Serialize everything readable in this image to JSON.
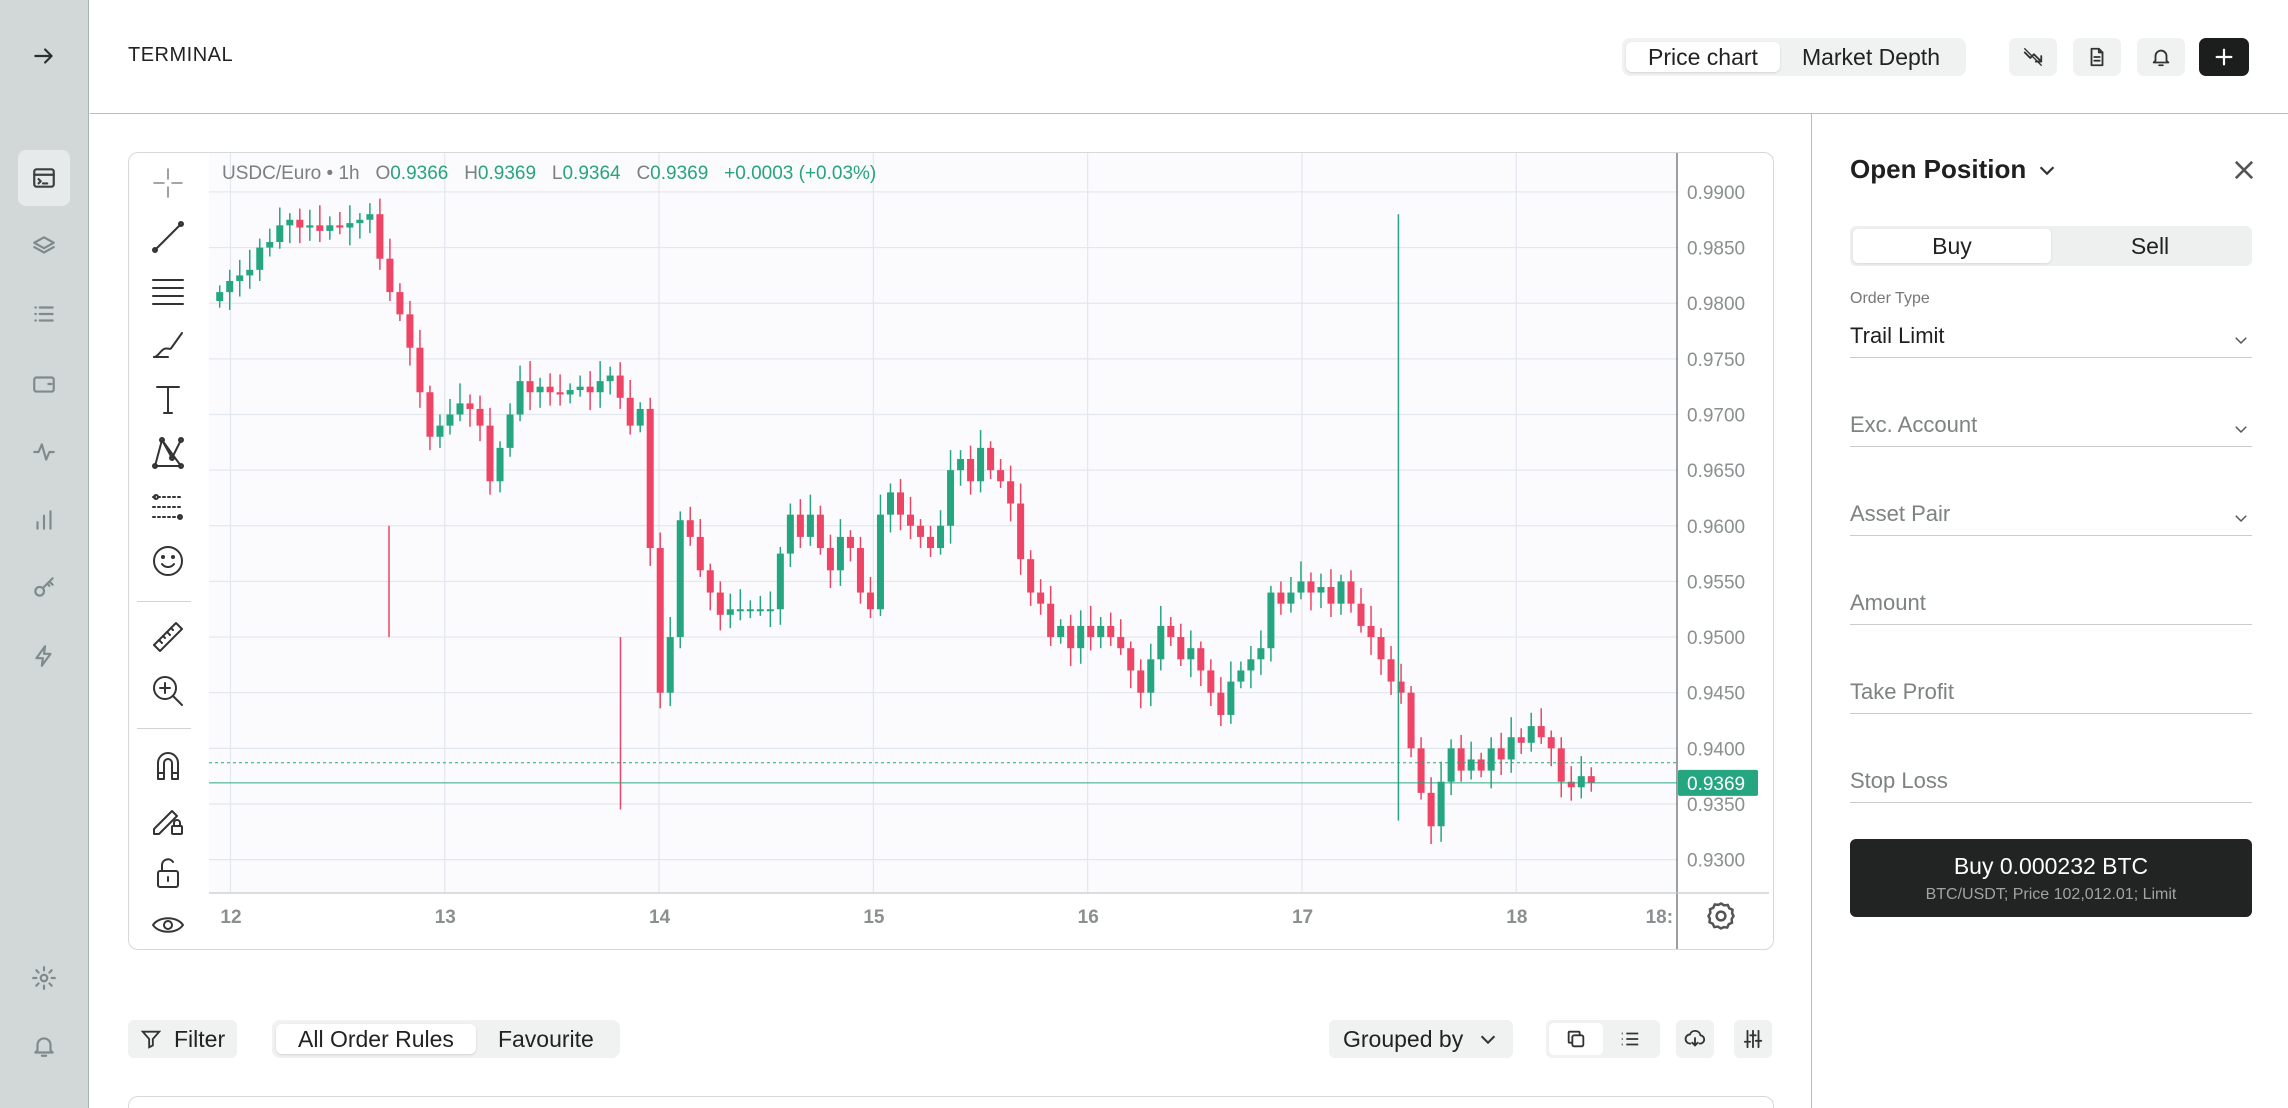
{
  "header": {
    "title": "TERMINAL",
    "tabs": [
      {
        "label": "Price chart",
        "selected": true
      },
      {
        "label": "Market Depth",
        "selected": false
      }
    ]
  },
  "sidebar": {
    "items": [
      {
        "icon": "arrow-right-icon"
      },
      {
        "icon": "terminal-icon",
        "active": true
      },
      {
        "icon": "layers-icon"
      },
      {
        "icon": "list-icon"
      },
      {
        "icon": "wallet-icon"
      },
      {
        "icon": "activity-icon"
      },
      {
        "icon": "bar-chart-icon"
      },
      {
        "icon": "key-icon"
      },
      {
        "icon": "lightning-icon"
      },
      {
        "icon": "gear-icon"
      },
      {
        "icon": "bell-icon"
      }
    ]
  },
  "chart": {
    "symbol": "USDC/Euro • 1h",
    "ohlc": {
      "o_label": "O",
      "o": "0.9366",
      "h_label": "H",
      "h": "0.9369",
      "l_label": "L",
      "l": "0.9364",
      "c_label": "C",
      "c": "0.9369",
      "change": "+0.0003 (+0.03%)"
    },
    "price_axis": [
      "0.9900",
      "0.9850",
      "0.9800",
      "0.9750",
      "0.9700",
      "0.9650",
      "0.9600",
      "0.9550",
      "0.9500",
      "0.9450",
      "0.9400",
      "0.9350",
      "0.9300"
    ],
    "time_axis": [
      "12",
      "13",
      "14",
      "15",
      "16",
      "17",
      "18",
      "18:"
    ],
    "last_price": "0.9369",
    "colors": {
      "up": "#26a680",
      "down": "#ee4466",
      "grid": "#e3e7ee"
    }
  },
  "chart_data": {
    "type": "candlestick",
    "title": "USDC/Euro • 1h",
    "ylim": [
      0.927,
      0.9935
    ],
    "xlim": [
      11.9,
      18.75
    ],
    "x_ticks": [
      12,
      13,
      14,
      15,
      16,
      17,
      18
    ],
    "closes": [
      0.981,
      0.982,
      0.9825,
      0.983,
      0.985,
      0.9855,
      0.987,
      0.9875,
      0.9868,
      0.987,
      0.9865,
      0.987,
      0.9868,
      0.9872,
      0.9875,
      0.988,
      0.984,
      0.981,
      0.979,
      0.976,
      0.972,
      0.968,
      0.969,
      0.97,
      0.971,
      0.9705,
      0.969,
      0.964,
      0.967,
      0.97,
      0.973,
      0.972,
      0.9725,
      0.972,
      0.9718,
      0.9722,
      0.9725,
      0.972,
      0.973,
      0.9735,
      0.9715,
      0.969,
      0.9705,
      0.958,
      0.945,
      0.95,
      0.9605,
      0.959,
      0.956,
      0.954,
      0.952,
      0.9525,
      0.9525,
      0.9525,
      0.9525,
      0.9525,
      0.9575,
      0.961,
      0.959,
      0.961,
      0.958,
      0.956,
      0.959,
      0.958,
      0.954,
      0.9525,
      0.961,
      0.963,
      0.961,
      0.96,
      0.959,
      0.958,
      0.96,
      0.965,
      0.966,
      0.964,
      0.967,
      0.965,
      0.964,
      0.962,
      0.957,
      0.954,
      0.953,
      0.95,
      0.951,
      0.949,
      0.951,
      0.95,
      0.951,
      0.95,
      0.949,
      0.947,
      0.945,
      0.948,
      0.951,
      0.95,
      0.948,
      0.949,
      0.947,
      0.945,
      0.943,
      0.946,
      0.947,
      0.948,
      0.949,
      0.954,
      0.953,
      0.954,
      0.955,
      0.954,
      0.9545,
      0.953,
      0.955,
      0.953,
      0.951,
      0.95,
      0.948,
      0.946,
      0.945,
      0.94,
      0.936,
      0.933,
      0.937,
      0.94,
      0.938,
      0.939,
      0.938,
      0.94,
      0.939,
      0.941,
      0.9405,
      0.942,
      0.941,
      0.94,
      0.937,
      0.9365,
      0.9375,
      0.9369
    ],
    "high": 0.988,
    "low": 0.932,
    "last": 0.9369
  },
  "tools": [
    "crosshair-icon",
    "trend-line-icon",
    "horizontal-lines-icon",
    "brush-icon",
    "text-icon",
    "pattern-icon",
    "fib-icon",
    "emoji-icon",
    "ruler-icon",
    "zoom-in-icon",
    "magnet-icon",
    "lock-draw-icon",
    "unlock-icon",
    "eye-icon"
  ],
  "order_panel": {
    "title": "Open Position",
    "sides": [
      {
        "label": "Buy",
        "selected": true
      },
      {
        "label": "Sell",
        "selected": false
      }
    ],
    "order_type_label": "Order Type",
    "order_type_value": "Trail Limit",
    "exc_account_placeholder": "Exc. Account",
    "asset_pair_placeholder": "Asset Pair",
    "amount_placeholder": "Amount",
    "take_profit_placeholder": "Take Profit",
    "stop_loss_placeholder": "Stop Loss",
    "buy_button": "Buy 0.000232 BTC",
    "buy_button_sub": "BTC/USDT; Price 102,012.01; Limit"
  },
  "bottom": {
    "filter": "Filter",
    "order_tabs": [
      {
        "label": "All Order Rules",
        "selected": true
      },
      {
        "label": "Favourite",
        "selected": false
      }
    ],
    "grouped_by": "Grouped by"
  }
}
